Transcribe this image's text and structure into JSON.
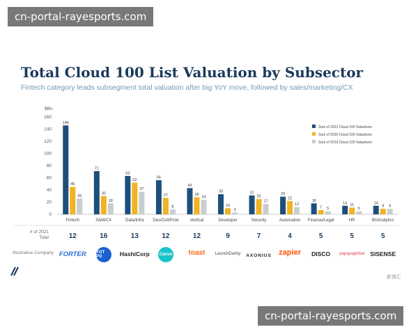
{
  "watermarks": {
    "top": "cn-portal-rayesports.com",
    "bottom": "cn-portal-rayesports.com"
  },
  "chart_data": {
    "type": "bar",
    "title": "Total Cloud 100 List Valuation by Subsector",
    "subtitle": "Fintech category leads subsegment total valuation after big YoY move, followed by sales/marketing/CX",
    "ylabel": "$Bn",
    "ylim": [
      0,
      160
    ],
    "yticks": [
      0,
      20,
      40,
      60,
      80,
      100,
      120,
      140,
      160
    ],
    "grid": false,
    "legend_position": "top-right",
    "categories": [
      "Fintech",
      "S&M/CX",
      "Data/Infra",
      "Des/Coll/Prod",
      "Vertical",
      "Developer",
      "Security",
      "Automation",
      "Finance/Legal",
      "HR",
      "BI/Analytics"
    ],
    "series": [
      {
        "name": "Sum of 2021 Cloud 100 Valuations",
        "color": "#1d4f7c",
        "values": [
          146,
          71,
          63,
          56,
          43,
          33,
          31,
          29,
          18,
          14,
          14
        ]
      },
      {
        "name": "Sum of 2020 Cloud 100 Valuations",
        "color": "#f0b323",
        "values": [
          45,
          30,
          52,
          27,
          28,
          10,
          25,
          22,
          7,
          11,
          9
        ]
      },
      {
        "name": "Sum of 2019 Cloud 100 Valuations",
        "color": "#c9cdcf",
        "values": [
          26,
          18,
          37,
          8,
          24,
          3,
          17,
          12,
          5,
          5,
          9
        ]
      }
    ],
    "count_row_label": "# of 2021 Total",
    "counts": [
      12,
      16,
      13,
      12,
      12,
      9,
      7,
      4,
      5,
      5,
      5
    ]
  },
  "logos": {
    "row_label": "Illustrative Company",
    "items": [
      {
        "text": "FORTER",
        "icon": "forter-logo",
        "color": "#2a6fdb"
      },
      {
        "text": "YOT PO",
        "icon": "yotpo-logo",
        "color": "#1b5fd1"
      },
      {
        "text": "HashiCorp",
        "icon": "hashicorp-logo",
        "color": "#222222"
      },
      {
        "text": "Canva",
        "icon": "canva-logo",
        "color": "#18c4c9"
      },
      {
        "text": "toast",
        "icon": "toast-logo",
        "color": "#ff6a1a"
      },
      {
        "text": "LaunchDarkly",
        "icon": "launchdarkly-logo",
        "color": "#444444"
      },
      {
        "text": "AXONIUS",
        "icon": "axonius-logo",
        "color": "#222222"
      },
      {
        "text": "zapier",
        "icon": "zapier-logo",
        "color": "#ff4f00"
      },
      {
        "text": "DISCO",
        "icon": "disco-logo",
        "color": "#222222"
      },
      {
        "text": "papayaglobal",
        "icon": "papaya-logo",
        "color": "#e23b4e"
      },
      {
        "text": "SISENSE",
        "icon": "sisense-logo",
        "color": "#222222"
      }
    ]
  },
  "footer": {
    "corner_mark": "新浪汇"
  }
}
